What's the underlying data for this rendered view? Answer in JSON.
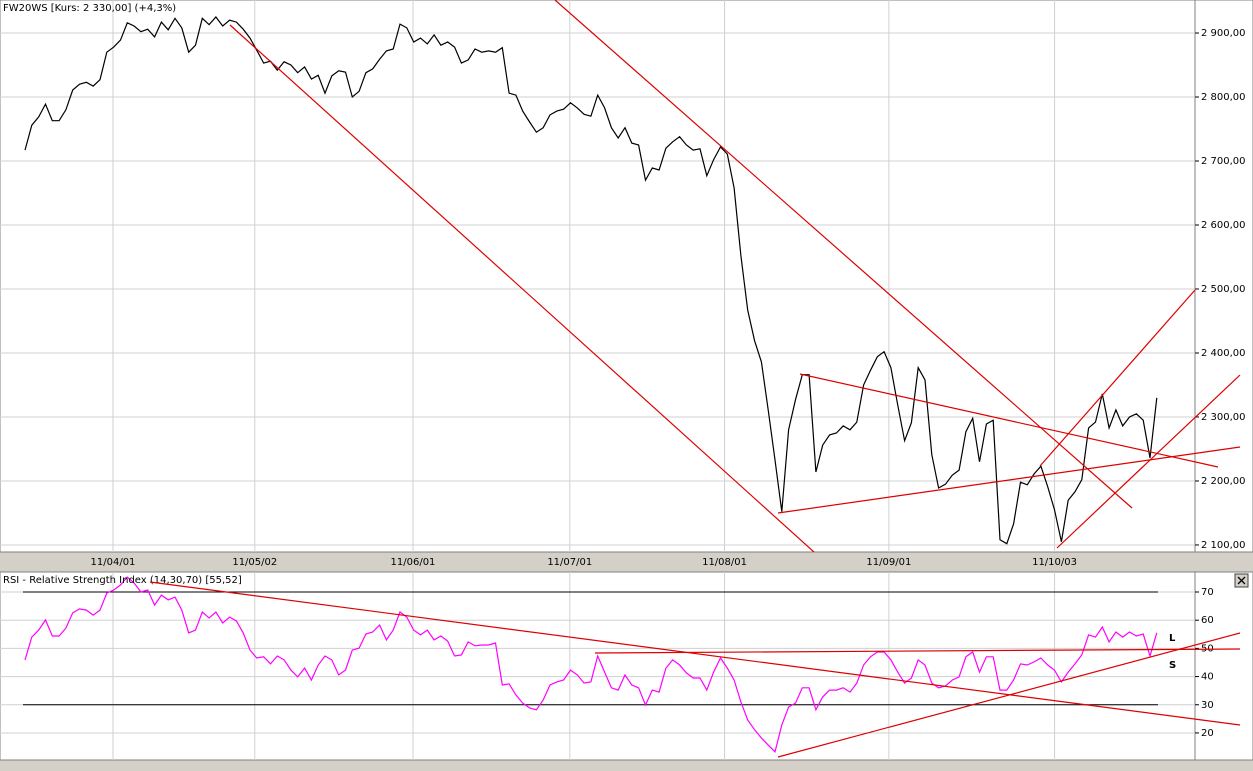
{
  "chart_data": [
    {
      "type": "line",
      "title": "FW20WS [Kurs: 2 330,00] (+4,3%)",
      "color": "#000000",
      "grid": true,
      "values": [
        2717,
        2756,
        2769,
        2789,
        2763,
        2763,
        2780,
        2811,
        2820,
        2823,
        2817,
        2827,
        2870,
        2878,
        2889,
        2916,
        2911,
        2902,
        2906,
        2894,
        2917,
        2905,
        2923,
        2908,
        2870,
        2881,
        2923,
        2913,
        2925,
        2911,
        2920,
        2917,
        2906,
        2892,
        2873,
        2853,
        2856,
        2842,
        2855,
        2850,
        2838,
        2847,
        2828,
        2834,
        2806,
        2833,
        2841,
        2839,
        2800,
        2809,
        2838,
        2844,
        2859,
        2872,
        2875,
        2914,
        2908,
        2886,
        2892,
        2883,
        2897,
        2881,
        2886,
        2878,
        2853,
        2858,
        2875,
        2870,
        2872,
        2870,
        2877,
        2806,
        2803,
        2778,
        2761,
        2745,
        2752,
        2772,
        2778,
        2781,
        2791,
        2783,
        2773,
        2770,
        2803,
        2783,
        2752,
        2736,
        2752,
        2728,
        2725,
        2670,
        2689,
        2686,
        2720,
        2730,
        2738,
        2725,
        2717,
        2719,
        2677,
        2702,
        2722,
        2711,
        2658,
        2552,
        2467,
        2419,
        2386,
        2311,
        2233,
        2152,
        2280,
        2327,
        2366,
        2366,
        2214,
        2256,
        2272,
        2275,
        2286,
        2280,
        2292,
        2350,
        2373,
        2394,
        2402,
        2377,
        2319,
        2263,
        2291,
        2377,
        2358,
        2241,
        2189,
        2195,
        2209,
        2217,
        2277,
        2298,
        2230,
        2289,
        2295,
        2108,
        2102,
        2133,
        2198,
        2194,
        2211,
        2223,
        2191,
        2155,
        2105,
        2170,
        2183,
        2202,
        2283,
        2292,
        2336,
        2283,
        2311,
        2286,
        2300,
        2305,
        2295,
        2236,
        2330
      ],
      "xlim": [
        -3.67,
        171.6
      ],
      "xticks": [
        {
          "value": 12.9,
          "label": "11/04/01"
        },
        {
          "value": 33.7,
          "label": "11/05/02"
        },
        {
          "value": 56.9,
          "label": "11/06/01"
        },
        {
          "value": 79.9,
          "label": "11/07/01"
        },
        {
          "value": 102.6,
          "label": "11/08/01"
        },
        {
          "value": 126.7,
          "label": "11/09/01"
        },
        {
          "value": 151.0,
          "label": "11/10/03"
        }
      ],
      "ylim": [
        2089,
        2951.6
      ],
      "yticks": [
        {
          "value": 2100,
          "label": "2 100,00"
        },
        {
          "value": 2200,
          "label": "2 200,00"
        },
        {
          "value": 2300,
          "label": "2 300,00"
        },
        {
          "value": 2400,
          "label": "2 400,00"
        },
        {
          "value": 2500,
          "label": "2 500,00"
        },
        {
          "value": 2600,
          "label": "2 600,00"
        },
        {
          "value": 2700,
          "label": "2 700,00"
        },
        {
          "value": 2800,
          "label": "2 800,00"
        },
        {
          "value": 2900,
          "label": "2 900,00"
        }
      ]
    },
    {
      "type": "line",
      "title": "RSI - Relative Strength Index (14,30,70) [55,52]",
      "color": "#ff00ff",
      "grid": true,
      "values": [
        45.9,
        54.0,
        56.5,
        60.1,
        54.4,
        54.4,
        57.2,
        62.6,
        64.0,
        63.6,
        61.8,
        63.6,
        69.6,
        70.7,
        72.5,
        75.3,
        73.2,
        70.0,
        70.7,
        65.4,
        68.9,
        67.2,
        68.2,
        63.6,
        55.5,
        56.5,
        62.9,
        60.8,
        62.9,
        59.0,
        61.1,
        59.7,
        55.5,
        49.4,
        46.6,
        47.0,
        44.5,
        47.3,
        45.9,
        42.3,
        39.9,
        43.0,
        38.8,
        44.1,
        47.3,
        45.9,
        40.6,
        42.3,
        49.4,
        50.1,
        55.1,
        55.8,
        58.3,
        53.0,
        56.5,
        62.9,
        61.1,
        56.5,
        54.8,
        56.5,
        53.0,
        54.4,
        52.6,
        47.3,
        47.7,
        52.3,
        50.9,
        51.2,
        51.2,
        51.9,
        37.0,
        37.4,
        33.5,
        30.6,
        28.9,
        28.2,
        31.7,
        37.0,
        38.1,
        38.8,
        42.3,
        40.6,
        37.7,
        38.1,
        47.3,
        41.6,
        36.0,
        35.2,
        40.6,
        37.0,
        36.0,
        29.9,
        35.2,
        34.5,
        43.0,
        45.9,
        44.1,
        41.3,
        39.5,
        39.5,
        35.2,
        41.6,
        46.6,
        43.0,
        38.8,
        31.0,
        24.6,
        21.1,
        18.2,
        15.7,
        13.3,
        22.8,
        29.2,
        30.6,
        36.0,
        36.0,
        28.2,
        32.8,
        35.2,
        35.2,
        36.0,
        34.5,
        37.7,
        44.1,
        47.0,
        48.7,
        48.7,
        45.9,
        41.6,
        37.7,
        39.5,
        45.9,
        44.1,
        37.7,
        36.0,
        36.7,
        38.8,
        39.9,
        47.0,
        48.7,
        41.6,
        47.0,
        47.0,
        35.2,
        35.2,
        38.8,
        44.5,
        44.1,
        45.2,
        46.6,
        44.1,
        42.3,
        38.1,
        41.6,
        44.5,
        47.7,
        54.8,
        54.0,
        57.6,
        52.3,
        55.8,
        54.0,
        55.8,
        54.4,
        55.1,
        47.3,
        55.52
      ],
      "xlim": [
        -3.67,
        171.6
      ],
      "xticks": [
        12.9,
        33.7,
        56.9,
        79.9,
        102.6,
        126.7,
        151.0
      ],
      "ylim": [
        10.4,
        77.1
      ],
      "yticks": [
        20,
        30,
        40,
        50,
        60,
        70
      ],
      "levels": [
        30,
        70
      ],
      "annotations": [
        "L",
        "S"
      ]
    }
  ]
}
